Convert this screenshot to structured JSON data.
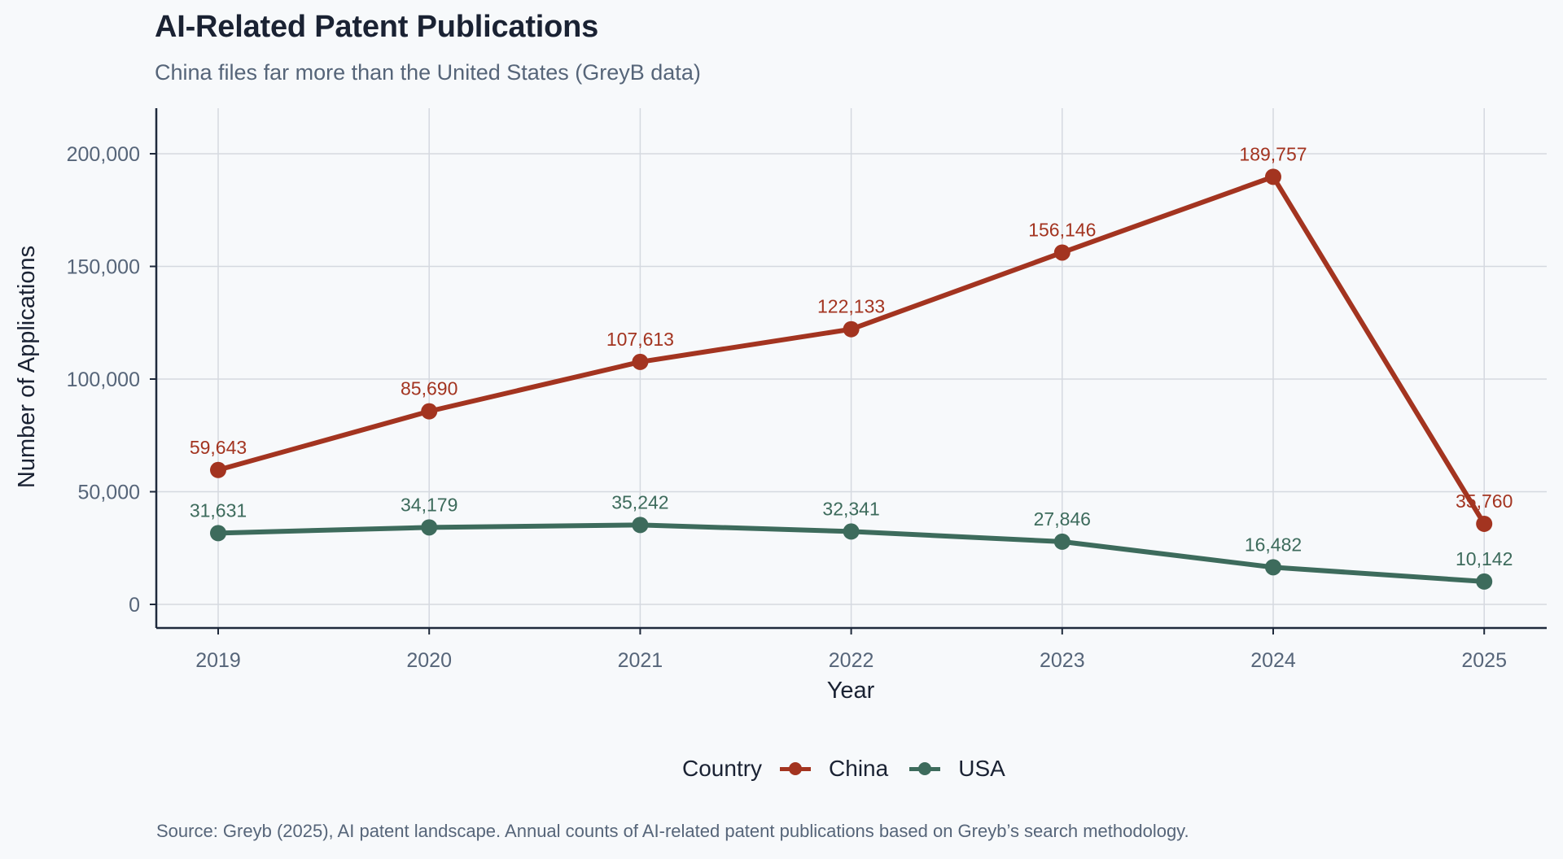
{
  "header": {
    "title": "AI-Related Patent Publications",
    "subtitle": "China files far more than the United States (GreyB data)"
  },
  "caption": "Source: Greyb (2025), AI patent landscape. Annual counts of AI-related patent publications based on Greyb’s search methodology.",
  "legend": {
    "title": "Country",
    "items": [
      {
        "label": "China",
        "color": "#a33420"
      },
      {
        "label": "USA",
        "color": "#3d6b5c"
      }
    ]
  },
  "chart_data": {
    "type": "line",
    "title": "AI-Related Patent Publications",
    "subtitle": "China files far more than the United States (GreyB data)",
    "xlabel": "Year",
    "ylabel": "Number of Applications",
    "x": [
      2019,
      2020,
      2021,
      2022,
      2023,
      2024,
      2025
    ],
    "x_tick_labels": [
      "2019",
      "2020",
      "2021",
      "2022",
      "2023",
      "2024",
      "2025"
    ],
    "y_ticks": [
      0,
      50000,
      100000,
      150000,
      200000
    ],
    "y_tick_labels": [
      "0",
      "50,000",
      "100,000",
      "150,000",
      "200,000"
    ],
    "ylim": [
      -10000,
      220000
    ],
    "grid": true,
    "legend_position": "bottom",
    "series": [
      {
        "name": "China",
        "color": "#a33420",
        "values": [
          59643,
          85690,
          107613,
          122133,
          156146,
          189757,
          35760
        ],
        "labels": [
          "59,643",
          "85,690",
          "107,613",
          "122,133",
          "156,146",
          "189,757",
          "35,760"
        ]
      },
      {
        "name": "USA",
        "color": "#3d6b5c",
        "values": [
          31631,
          34179,
          35242,
          32341,
          27846,
          16482,
          10142
        ],
        "labels": [
          "31,631",
          "34,179",
          "35,242",
          "32,341",
          "27,846",
          "16,482",
          "10,142"
        ]
      }
    ]
  }
}
